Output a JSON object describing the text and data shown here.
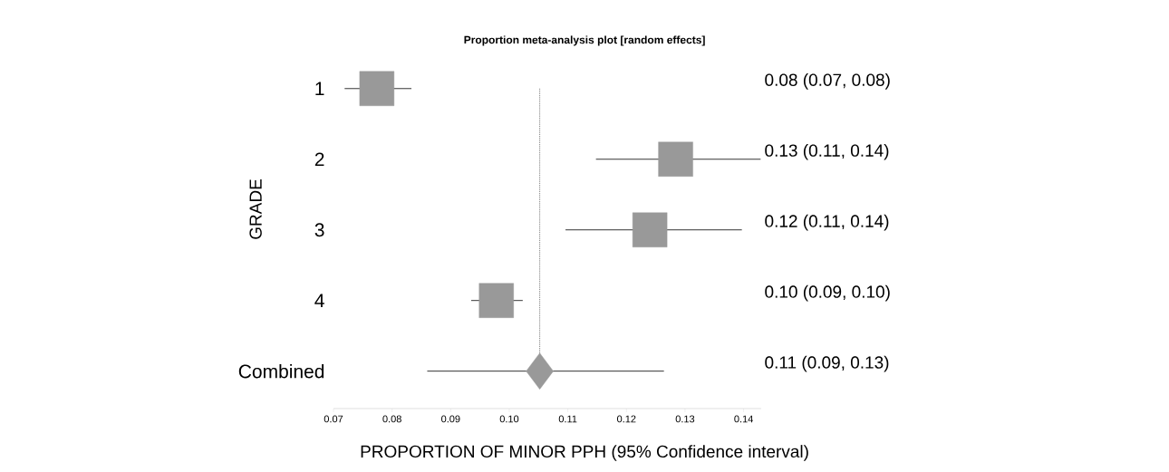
{
  "chart_data": {
    "type": "scatter",
    "title": "Proportion meta-analysis plot [random effects]",
    "xlabel": "PROPORTION OF MINOR PPH (95% Confidence interval)",
    "ylabel": "GRADE",
    "orientation": "horizontal",
    "categories": [
      "1",
      "2",
      "3",
      "4",
      "Combined"
    ],
    "xlim": [
      0.07,
      0.143
    ],
    "xticks": [
      {
        "value": 0.07,
        "label": "0.07"
      },
      {
        "value": 0.08,
        "label": "0.08"
      },
      {
        "value": 0.09,
        "label": "0.09"
      },
      {
        "value": 0.1,
        "label": "0.10"
      },
      {
        "value": 0.11,
        "label": "0.11"
      },
      {
        "value": 0.12,
        "label": "0.12"
      },
      {
        "value": 0.13,
        "label": "0.13"
      },
      {
        "value": 0.14,
        "label": "0.14"
      }
    ],
    "series": [
      {
        "color": "#999999",
        "marker": "square",
        "values": [
          0.0774,
          0.1284,
          0.124,
          0.0978,
          null
        ],
        "errors": [
          [
            0.0719,
            0.0833
          ],
          [
            0.1148,
            0.1429
          ],
          [
            0.1096,
            0.1397
          ],
          [
            0.0935,
            0.1023
          ],
          null
        ]
      },
      {
        "color": "#999999",
        "marker": "diamond",
        "values": [
          null,
          null,
          null,
          null,
          0.1052
        ],
        "errors": [
          null,
          null,
          null,
          null,
          [
            0.086,
            0.1264
          ]
        ]
      }
    ],
    "annotations": [
      "0.08 (0.07, 0.08)",
      "0.13 (0.11, 0.14)",
      "0.12 (0.11, 0.14)",
      "0.10 (0.09, 0.10)",
      "0.11 (0.09, 0.13)"
    ],
    "ref_lines": [
      {
        "axis": "x",
        "value": 0.1052,
        "line_style": "dotted"
      }
    ]
  }
}
